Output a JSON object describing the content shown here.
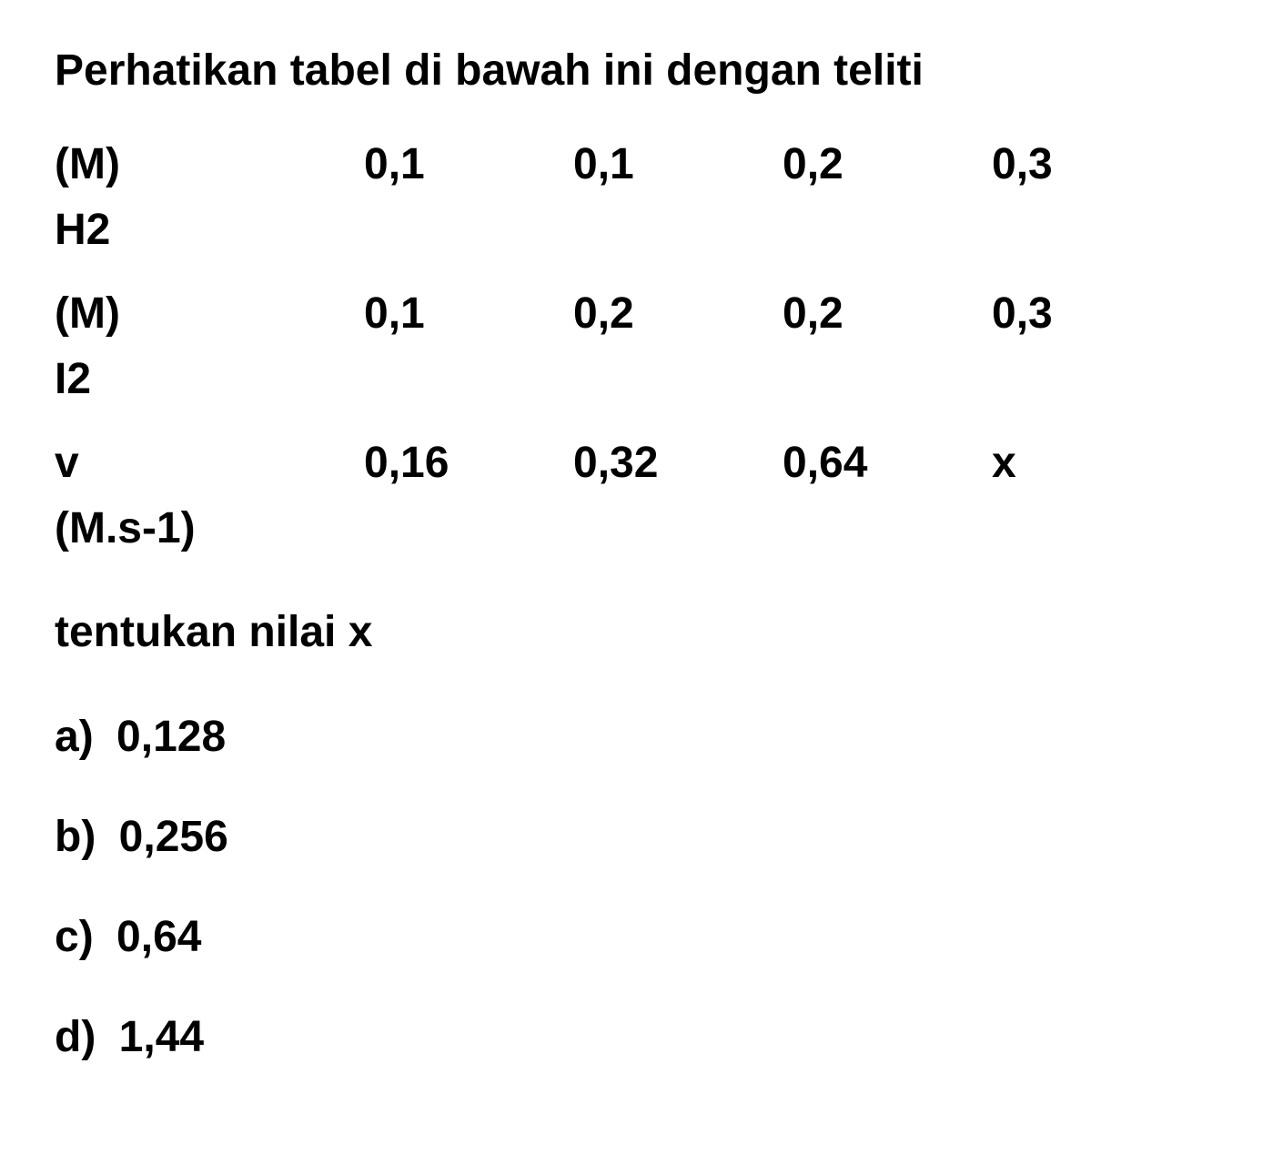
{
  "title": "Perhatikan tabel di bawah ini dengan teliti",
  "table": {
    "rows": [
      {
        "label1": "(M)",
        "label2": "H2",
        "c1": "0,1",
        "c2": "0,1",
        "c3": "0,2",
        "c4": "0,3"
      },
      {
        "label1": "(M)",
        "label2": "I2",
        "c1": "0,1",
        "c2": "0,2",
        "c3": "0,2",
        "c4": "0,3"
      },
      {
        "label1": "v",
        "label2": "(M.s-1)",
        "c1": "0,16",
        "c2": "0,32",
        "c3": "0,64",
        "c4": "x"
      }
    ]
  },
  "question": "tentukan nilai x",
  "options": {
    "a": {
      "letter": "a)",
      "value": "0,128"
    },
    "b": {
      "letter": "b)",
      "value": "0,256"
    },
    "c": {
      "letter": "c)",
      "value": "0,64"
    },
    "d": {
      "letter": "d)",
      "value": "1,44"
    }
  },
  "colors": {
    "background": "#ffffff",
    "text": "#000000"
  },
  "typography": {
    "font_family": "Arial, Helvetica, sans-serif",
    "font_size_pt": 36,
    "font_weight": "bold"
  }
}
